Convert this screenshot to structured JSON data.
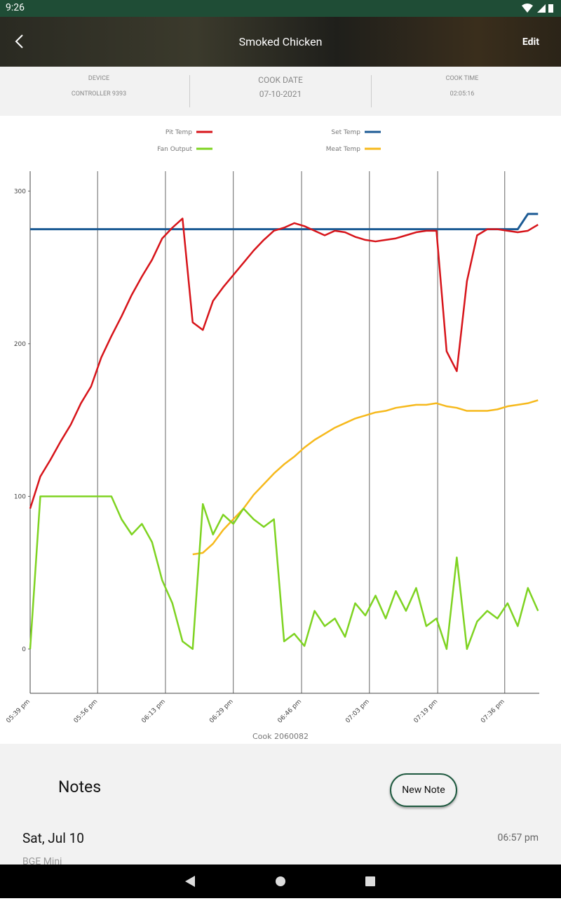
{
  "status_bar": {
    "time": "9:26"
  },
  "header": {
    "title": "Smoked Chicken",
    "action": "Edit"
  },
  "info": [
    {
      "label": "DEVICE",
      "value": "CONTROLLER 9393"
    },
    {
      "label": "COOK DATE",
      "value": "07-10-2021"
    },
    {
      "label": "COOK TIME",
      "value": "02:05:16"
    }
  ],
  "chart_data": {
    "type": "line",
    "xlabel": "Cook 2060082",
    "x": [
      0,
      2.5,
      5,
      7.5,
      10,
      12.5,
      15,
      17.5,
      20,
      22.5,
      25,
      27.5,
      30,
      32.5,
      35,
      37.5,
      40,
      42.5,
      45,
      47.5,
      50,
      52.5,
      55,
      57.5,
      60,
      62.5,
      65,
      67.5,
      70,
      72.5,
      75,
      77.5,
      80,
      82.5,
      85,
      87.5,
      90,
      92.5,
      95,
      97.5,
      100,
      102.5,
      105,
      107.5,
      110,
      112.5,
      115,
      117.5,
      120,
      122.5,
      125
    ],
    "series": [
      {
        "name": "Pit Temp",
        "color": "#d7141a",
        "values": [
          92,
          113,
          124,
          136,
          147,
          161,
          172,
          191,
          205,
          218,
          232,
          244,
          255,
          269,
          276,
          282,
          214,
          209,
          228,
          237,
          245,
          253,
          261,
          268,
          274,
          276,
          279,
          277,
          274,
          271,
          274,
          273,
          270,
          268,
          267,
          268,
          269,
          271,
          273,
          274,
          274,
          195,
          182,
          241,
          271,
          275,
          275,
          274,
          273,
          274,
          278
        ]
      },
      {
        "name": "Set Temp",
        "color": "#1b5a94",
        "values": [
          275,
          275,
          275,
          275,
          275,
          275,
          275,
          275,
          275,
          275,
          275,
          275,
          275,
          275,
          275,
          275,
          275,
          275,
          275,
          275,
          275,
          275,
          275,
          275,
          275,
          275,
          275,
          275,
          275,
          275,
          275,
          275,
          275,
          275,
          275,
          275,
          275,
          275,
          275,
          275,
          275,
          275,
          275,
          275,
          275,
          275,
          275,
          275,
          275,
          285,
          285
        ]
      },
      {
        "name": "Fan Output",
        "color": "#7ed321",
        "values": [
          0,
          100,
          100,
          100,
          100,
          100,
          100,
          100,
          100,
          85,
          75,
          82,
          70,
          45,
          30,
          5,
          0,
          95,
          75,
          88,
          82,
          92,
          85,
          80,
          85,
          5,
          10,
          2,
          25,
          15,
          20,
          8,
          30,
          22,
          35,
          20,
          38,
          25,
          40,
          15,
          20,
          0,
          60,
          0,
          18,
          25,
          20,
          30,
          15,
          40,
          25
        ]
      },
      {
        "name": "Meat Temp",
        "color": "#f6b91c",
        "values": [
          null,
          null,
          null,
          null,
          null,
          null,
          null,
          null,
          null,
          null,
          null,
          null,
          null,
          null,
          null,
          null,
          62,
          63,
          69,
          78,
          85,
          92,
          101,
          108,
          115,
          121,
          126,
          132,
          137,
          141,
          145,
          148,
          151,
          153,
          155,
          156,
          158,
          159,
          160,
          160,
          161,
          159,
          158,
          156,
          156,
          156,
          157,
          159,
          160,
          161,
          163
        ]
      }
    ],
    "xlim": [
      0,
      125.3
    ],
    "xticks": [
      {
        "value": 0,
        "label": "05:39 pm"
      },
      {
        "value": 16.6,
        "label": "05:56 pm"
      },
      {
        "value": 33.3,
        "label": "06:13 pm"
      },
      {
        "value": 50,
        "label": "06:29 pm"
      },
      {
        "value": 66.8,
        "label": "06:46 pm"
      },
      {
        "value": 83.5,
        "label": "07:03 pm"
      },
      {
        "value": 100.3,
        "label": "07:19 pm"
      },
      {
        "value": 116.8,
        "label": "07:36 pm"
      }
    ],
    "ylim": [
      -29,
      313
    ],
    "yticks": [
      0,
      100,
      200,
      300
    ],
    "grid": true
  },
  "notes": {
    "title": "Notes",
    "button": "New Note",
    "entries": [
      {
        "date": "Sat, Jul 10",
        "time": "06:57 pm",
        "text": "BGE Mini"
      }
    ]
  }
}
